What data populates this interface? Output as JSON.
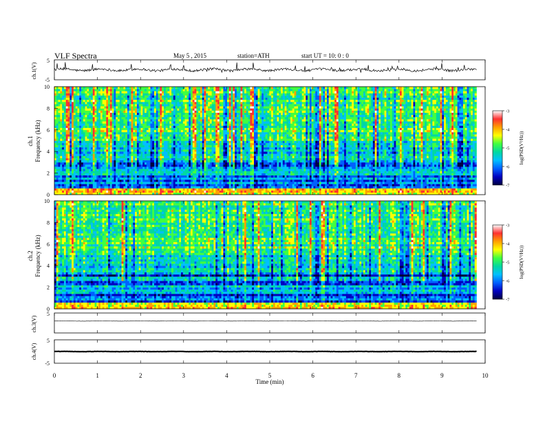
{
  "header": {
    "title": "VLF  Spectra",
    "date": "May 5  , 2015",
    "station": "station=ATH",
    "start": "start  UT  =    10: 0   : 0"
  },
  "panels": {
    "ch1_wave_label": "ch.1(V)",
    "ch1_spec_label": [
      "ch.1",
      "Frequency  (kHz)"
    ],
    "ch2_spec_label": [
      "ch.2",
      "Frequency  (kHz)"
    ],
    "ch3_wave_label": "ch.3(V)",
    "ch4_wave_label": "ch.4(V)"
  },
  "colorbar": {
    "label": "log(PSD(V²/Hz))",
    "ticks": [
      "-3",
      "-4",
      "-5",
      "-6",
      "-7"
    ],
    "colors": [
      "#ffffff",
      "#ff3030",
      "#ffa000",
      "#ffff00",
      "#40ff40",
      "#00d8a0",
      "#00c0ff",
      "#0060ff",
      "#0000c0",
      "#000040"
    ]
  },
  "chart_data": [
    {
      "type": "line",
      "name": "ch1",
      "ylabel": "ch.1(V)",
      "ylim": [
        -5,
        5
      ],
      "yticks": [
        "5",
        "-5"
      ],
      "xlim": [
        0,
        10
      ],
      "baseline": 0,
      "noise_amplitude": 1.2
    },
    {
      "type": "heatmap",
      "name": "ch1-spectrogram",
      "ylabel": "Frequency  (kHz)",
      "ylim": [
        0,
        10
      ],
      "yticks": [
        "0",
        "2",
        "4",
        "6",
        "8",
        "10"
      ],
      "xlim": [
        0,
        9.8
      ],
      "zlim": [
        -7,
        -3
      ]
    },
    {
      "type": "heatmap",
      "name": "ch2-spectrogram",
      "ylabel": "Frequency  (kHz)",
      "ylim": [
        0,
        10
      ],
      "yticks": [
        "0",
        "2",
        "4",
        "6",
        "8",
        "10"
      ],
      "xlim": [
        0,
        9.8
      ],
      "zlim": [
        -7,
        -3
      ]
    },
    {
      "type": "line",
      "name": "ch3",
      "ylabel": "ch.3(V)",
      "ylim": [
        -5,
        5
      ],
      "yticks": [
        "5"
      ],
      "baseline": 1,
      "noise_amplitude": 0.15
    },
    {
      "type": "line",
      "name": "ch4",
      "ylabel": "ch.4(V)",
      "ylim": [
        -5,
        5
      ],
      "yticks": [
        "5",
        "-5"
      ],
      "baseline": 0,
      "noise_amplitude": 0.12
    }
  ],
  "xaxis": {
    "label": "Time  (min)",
    "ticks": [
      "0",
      "1",
      "2",
      "3",
      "4",
      "5",
      "6",
      "7",
      "8",
      "9",
      "10"
    ],
    "xlim": [
      0,
      10
    ]
  }
}
